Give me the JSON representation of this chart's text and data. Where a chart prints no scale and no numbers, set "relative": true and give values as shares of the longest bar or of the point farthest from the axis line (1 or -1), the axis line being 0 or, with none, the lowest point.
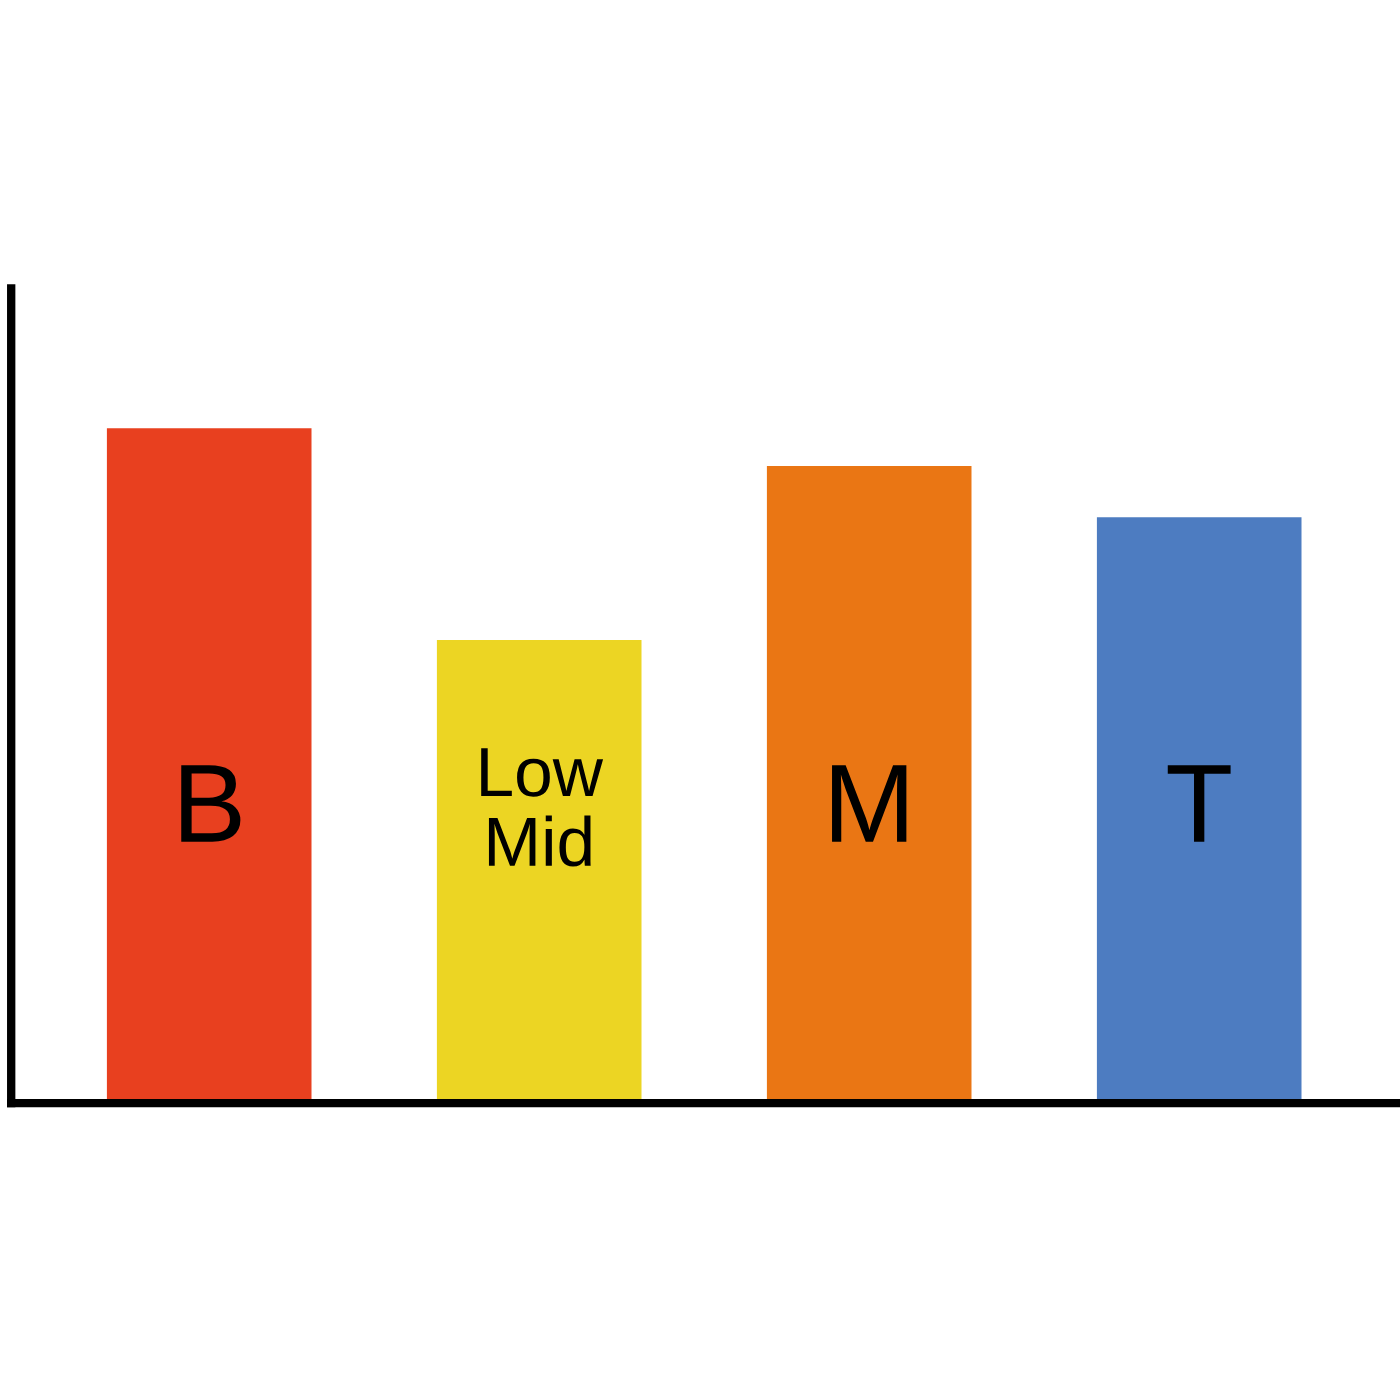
{
  "chart_data": {
    "type": "bar",
    "relative": true,
    "categories": [
      "B",
      "Low Mid",
      "M",
      "T"
    ],
    "values": [
      1,
      0.686,
      0.944,
      0.868
    ],
    "colors": [
      "#e8401f",
      "#ecd523",
      "#ea7614",
      "#4d7cc1"
    ],
    "legend": false
  }
}
